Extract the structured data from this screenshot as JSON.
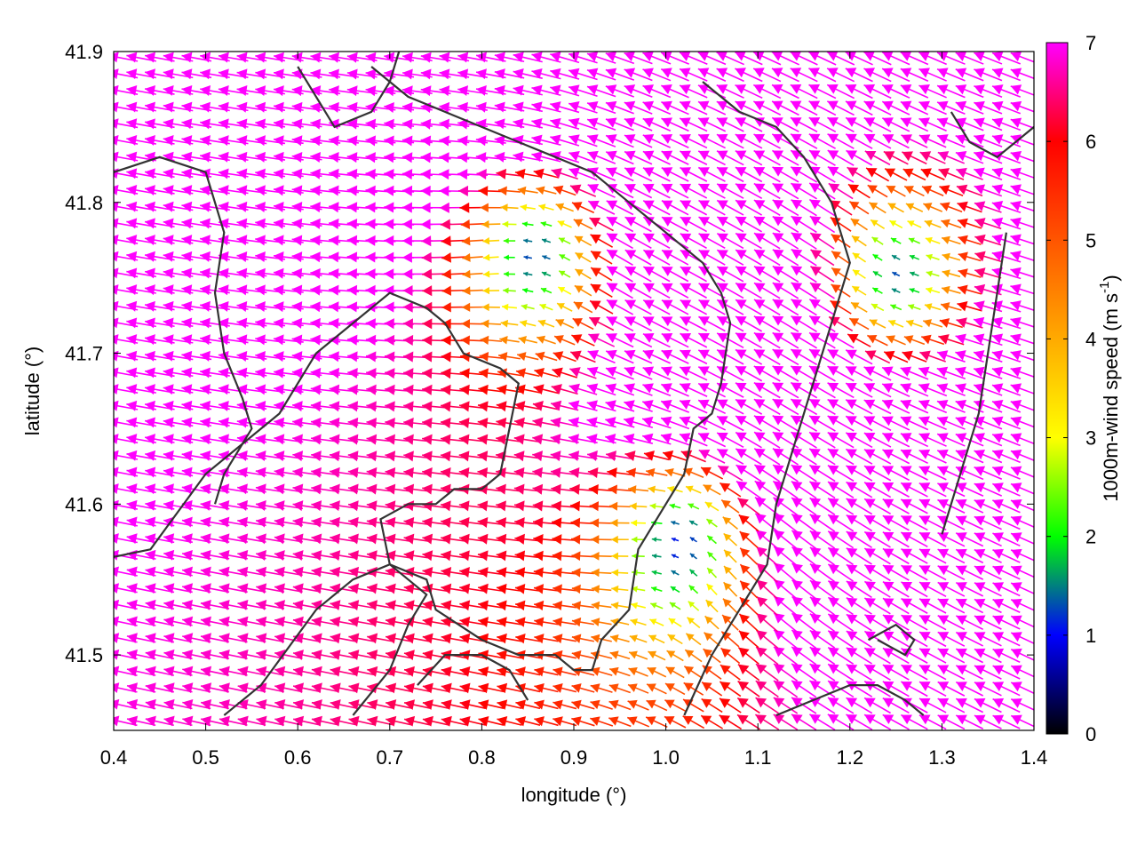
{
  "chart_data": {
    "type": "vector-field",
    "xlabel": "longitude (°)",
    "ylabel": "latitude (°)",
    "xlim": [
      0.4,
      1.4
    ],
    "ylim": [
      41.45,
      41.9
    ],
    "x_ticks": [
      0.4,
      0.5,
      0.6,
      0.7,
      0.8,
      0.9,
      1.0,
      1.1,
      1.2,
      1.3,
      1.4
    ],
    "x_tick_labels": [
      "0.4",
      "0.5",
      "0.6",
      "0.7",
      "0.8",
      "0.9",
      "1.0",
      "1.1",
      "1.2",
      "1.3",
      "1.4"
    ],
    "y_ticks": [
      41.5,
      41.6,
      41.7,
      41.8,
      41.9
    ],
    "y_tick_labels": [
      "41.5",
      "41.6",
      "41.7",
      "41.8",
      "41.9"
    ],
    "colorbar": {
      "label_main": "1000m-wind speed (m s",
      "label_sup": "-1",
      "label_end": ")",
      "range": [
        0,
        7
      ],
      "ticks": [
        0,
        1,
        2,
        3,
        4,
        5,
        6,
        7
      ],
      "tick_labels": [
        "0",
        "1",
        "2",
        "3",
        "4",
        "5",
        "6",
        "7"
      ],
      "stops": [
        {
          "value": 0,
          "color": "#000000"
        },
        {
          "value": 1,
          "color": "#0000ff"
        },
        {
          "value": 2,
          "color": "#00ff00"
        },
        {
          "value": 3,
          "color": "#ffff00"
        },
        {
          "value": 4,
          "color": "#ffaa00"
        },
        {
          "value": 5,
          "color": "#ff5500"
        },
        {
          "value": 6,
          "color": "#ff0000"
        },
        {
          "value": 7,
          "color": "#ff00ff"
        }
      ]
    },
    "wind_field": {
      "grid_spacing_deg": [
        0.02,
        0.011
      ],
      "background_flow_ms": 7.5,
      "vortices": [
        {
          "lon": 1.02,
          "lat": 41.58,
          "strength": 6
        },
        {
          "lon": 0.86,
          "lat": 41.77,
          "strength": 5
        },
        {
          "lon": 1.25,
          "lat": 41.75,
          "strength": -3
        }
      ]
    },
    "contours": [
      [
        [
          0.4,
          41.565
        ],
        [
          0.44,
          41.57
        ],
        [
          0.5,
          41.62
        ],
        [
          0.58,
          41.66
        ],
        [
          0.62,
          41.7
        ],
        [
          0.66,
          41.72
        ],
        [
          0.7,
          41.74
        ],
        [
          0.74,
          41.73
        ],
        [
          0.76,
          41.72
        ],
        [
          0.78,
          41.7
        ],
        [
          0.82,
          41.69
        ],
        [
          0.84,
          41.68
        ],
        [
          0.83,
          41.65
        ],
        [
          0.82,
          41.62
        ],
        [
          0.8,
          41.61
        ],
        [
          0.77,
          41.61
        ],
        [
          0.75,
          41.6
        ],
        [
          0.72,
          41.6
        ],
        [
          0.69,
          41.59
        ],
        [
          0.7,
          41.56
        ],
        [
          0.74,
          41.54
        ],
        [
          0.72,
          41.52
        ],
        [
          0.7,
          41.49
        ],
        [
          0.66,
          41.46
        ]
      ],
      [
        [
          0.52,
          41.46
        ],
        [
          0.56,
          41.48
        ],
        [
          0.62,
          41.53
        ],
        [
          0.66,
          41.55
        ],
        [
          0.7,
          41.56
        ],
        [
          0.74,
          41.55
        ],
        [
          0.75,
          41.53
        ],
        [
          0.8,
          41.51
        ],
        [
          0.84,
          41.5
        ],
        [
          0.88,
          41.5
        ],
        [
          0.9,
          41.49
        ],
        [
          0.92,
          41.49
        ],
        [
          0.93,
          41.51
        ],
        [
          0.96,
          41.53
        ],
        [
          0.97,
          41.57
        ],
        [
          1.0,
          41.6
        ],
        [
          1.02,
          41.62
        ],
        [
          1.03,
          41.65
        ],
        [
          1.05,
          41.66
        ],
        [
          1.06,
          41.68
        ],
        [
          1.07,
          41.72
        ],
        [
          1.06,
          41.74
        ],
        [
          1.04,
          41.76
        ],
        [
          1.0,
          41.78
        ],
        [
          0.96,
          41.8
        ],
        [
          0.92,
          41.82
        ],
        [
          0.88,
          41.83
        ],
        [
          0.84,
          41.84
        ],
        [
          0.8,
          41.85
        ],
        [
          0.76,
          41.86
        ],
        [
          0.72,
          41.87
        ],
        [
          0.7,
          41.88
        ],
        [
          0.68,
          41.89
        ]
      ],
      [
        [
          1.02,
          41.46
        ],
        [
          1.05,
          41.5
        ],
        [
          1.08,
          41.53
        ],
        [
          1.11,
          41.56
        ],
        [
          1.12,
          41.6
        ],
        [
          1.14,
          41.64
        ],
        [
          1.16,
          41.68
        ],
        [
          1.18,
          41.72
        ],
        [
          1.2,
          41.76
        ],
        [
          1.18,
          41.8
        ],
        [
          1.15,
          41.83
        ],
        [
          1.12,
          41.85
        ],
        [
          1.08,
          41.86
        ],
        [
          1.04,
          41.88
        ]
      ],
      [
        [
          0.4,
          41.82
        ],
        [
          0.45,
          41.83
        ],
        [
          0.5,
          41.82
        ],
        [
          0.52,
          41.78
        ],
        [
          0.51,
          41.74
        ],
        [
          0.52,
          41.7
        ],
        [
          0.54,
          41.67
        ],
        [
          0.55,
          41.65
        ],
        [
          0.52,
          41.62
        ],
        [
          0.51,
          41.6
        ]
      ],
      [
        [
          0.6,
          41.89
        ],
        [
          0.62,
          41.87
        ],
        [
          0.64,
          41.85
        ],
        [
          0.68,
          41.86
        ],
        [
          0.7,
          41.88
        ],
        [
          0.71,
          41.9
        ]
      ],
      [
        [
          1.12,
          41.46
        ],
        [
          1.16,
          41.47
        ],
        [
          1.2,
          41.48
        ],
        [
          1.23,
          41.48
        ],
        [
          1.26,
          41.47
        ],
        [
          1.28,
          41.46
        ]
      ],
      [
        [
          0.73,
          41.48
        ],
        [
          0.76,
          41.5
        ],
        [
          0.8,
          41.5
        ],
        [
          0.83,
          41.49
        ],
        [
          0.85,
          41.47
        ]
      ],
      [
        [
          1.22,
          41.51
        ],
        [
          1.25,
          41.52
        ],
        [
          1.27,
          41.51
        ],
        [
          1.26,
          41.5
        ],
        [
          1.23,
          41.51
        ]
      ],
      [
        [
          1.31,
          41.86
        ],
        [
          1.33,
          41.84
        ],
        [
          1.36,
          41.83
        ],
        [
          1.38,
          41.84
        ],
        [
          1.4,
          41.85
        ]
      ],
      [
        [
          1.3,
          41.58
        ],
        [
          1.32,
          41.62
        ],
        [
          1.34,
          41.66
        ],
        [
          1.35,
          41.7
        ],
        [
          1.36,
          41.74
        ],
        [
          1.37,
          41.78
        ]
      ]
    ]
  }
}
